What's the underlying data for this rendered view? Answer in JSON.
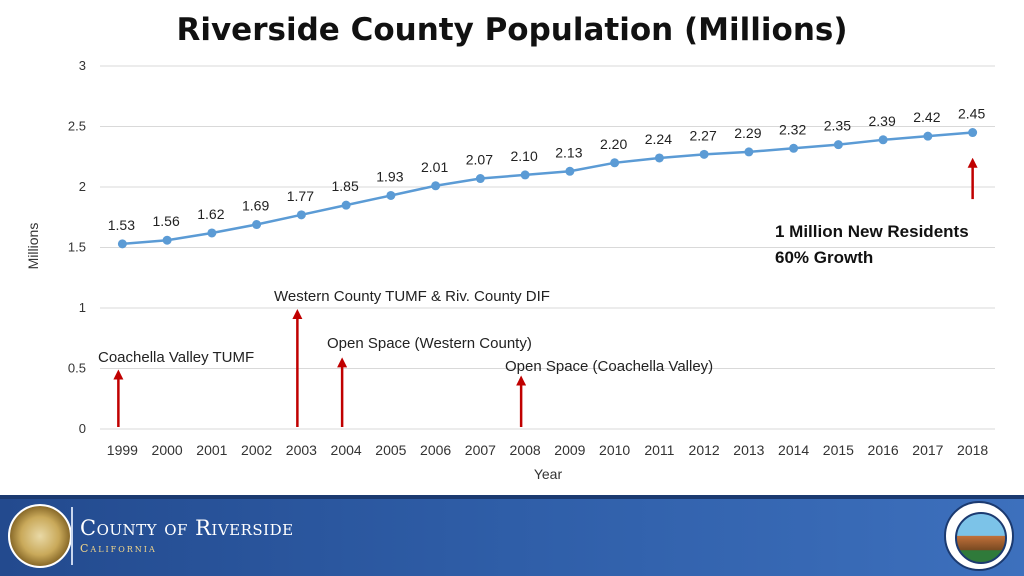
{
  "chart_data": {
    "type": "line",
    "title": "Riverside County Population (Millions)",
    "xlabel": "Year",
    "ylabel": "Millions",
    "ylim": [
      0,
      3
    ],
    "yticks": [
      "0",
      "0.5",
      "1",
      "1.5",
      "2",
      "2.5",
      "3"
    ],
    "grid": true,
    "legend": "none",
    "categories": [
      "1999",
      "2000",
      "2001",
      "2002",
      "2003",
      "2004",
      "2005",
      "2006",
      "2007",
      "2008",
      "2009",
      "2010",
      "2011",
      "2012",
      "2013",
      "2014",
      "2015",
      "2016",
      "2017",
      "2018"
    ],
    "series": [
      {
        "values": [
          1.53,
          1.56,
          1.62,
          1.69,
          1.77,
          1.85,
          1.93,
          2.01,
          2.07,
          2.1,
          2.13,
          2.2,
          2.24,
          2.27,
          2.29,
          2.32,
          2.35,
          2.39,
          2.42,
          2.45
        ],
        "labels": [
          "1.53",
          "1.56",
          "1.62",
          "1.69",
          "1.77",
          "1.85",
          "1.93",
          "2.01",
          "2.07",
          "2.10",
          "2.13",
          "2.20",
          "2.24",
          "2.27",
          "2.29",
          "2.32",
          "2.35",
          "2.39",
          "2.42",
          "2.45"
        ],
        "color": "#5b9bd5"
      }
    ],
    "annotations": [
      {
        "text": "Coachella Valley TUMF",
        "year": "1999",
        "arrow_top": 0.5
      },
      {
        "text": "Western County TUMF & Riv. County DIF",
        "year": "2003",
        "arrow_top": 1.0
      },
      {
        "text": "Open Space (Western County)",
        "year": "2004",
        "arrow_top": 0.6
      },
      {
        "text": "Open Space (Coachella Valley)",
        "year": "2008",
        "arrow_top": 0.45
      }
    ],
    "callout": {
      "lines": [
        "1 Million New Residents",
        "60% Growth"
      ],
      "year": "2018",
      "arrow_from": 1.9,
      "arrow_to": 2.25
    },
    "annotation_color": "#c00000",
    "gridline_color": "#d9d9d9"
  },
  "footer": {
    "county_name": "County of Riverside",
    "county_sub": "California",
    "background_color": "#2f5ea8"
  },
  "icons": {
    "left_logo": "county-seal-icon",
    "right_logo": "wrcog-seal-icon"
  }
}
